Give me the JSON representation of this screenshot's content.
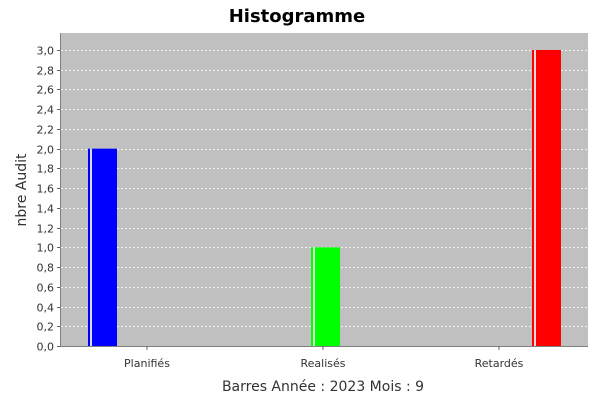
{
  "chart_data": {
    "type": "bar",
    "title": "Histogramme",
    "xlabel": "Barres Année : 2023 Mois : 9",
    "ylabel": "nbre Audit",
    "categories": [
      "Planifiés",
      "Realisés",
      "Retardés"
    ],
    "values": [
      2,
      1,
      3
    ],
    "colors": [
      "#0000ff",
      "#00ff00",
      "#ff0000"
    ],
    "ylim": [
      0,
      3.0
    ],
    "ytick_step": 0.2,
    "ytick_labels": [
      "0,0",
      "0,2",
      "0,4",
      "0,6",
      "0,8",
      "1,0",
      "1,2",
      "1,4",
      "1,6",
      "1,8",
      "2,0",
      "2,2",
      "2,4",
      "2,6",
      "2,8",
      "3,0"
    ],
    "grid": true,
    "plot_background": "#c0c0c0",
    "legend": "none"
  }
}
